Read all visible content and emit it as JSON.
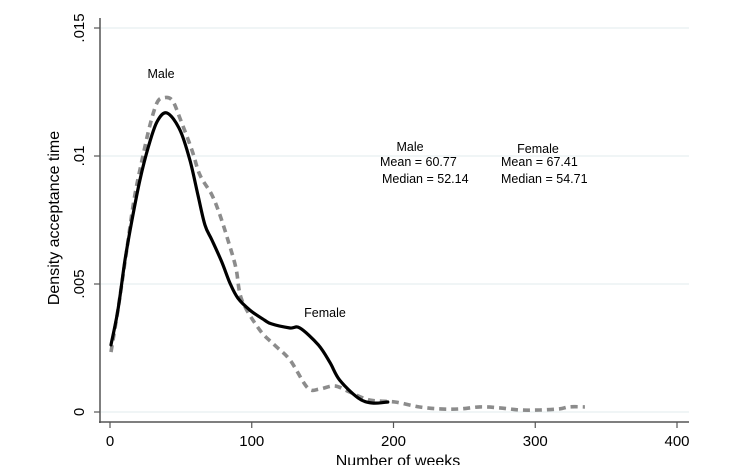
{
  "chart_data": {
    "type": "line",
    "title": "",
    "xlabel": "Number of weeks",
    "ylabel": "Density acceptance time",
    "xlim": [
      0,
      400
    ],
    "ylim": [
      0,
      0.015
    ],
    "xticks": [
      0,
      100,
      200,
      300,
      400
    ],
    "xtick_labels": [
      "0",
      "100",
      "200",
      "300",
      "400"
    ],
    "yticks": [
      0,
      0.005,
      0.01,
      0.015
    ],
    "ytick_labels": [
      "0",
      ".005",
      ".01",
      ".015"
    ],
    "grid": true,
    "series": [
      {
        "name": "Female",
        "style": "solid",
        "color": "#000000",
        "x": [
          0.7,
          5.6,
          10.6,
          15.5,
          21.1,
          26.8,
          33.1,
          40.2,
          49.3,
          56.4,
          62,
          67,
          71.9,
          78.9,
          84.6,
          90.2,
          98.7,
          109,
          114,
          127,
          134,
          147,
          155,
          162,
          175,
          185,
          196
        ],
        "y": [
          0.00262,
          0.00398,
          0.00594,
          0.0075,
          0.00906,
          0.01031,
          0.01133,
          0.01168,
          0.01102,
          0.00984,
          0.00848,
          0.0073,
          0.00672,
          0.00586,
          0.00504,
          0.00445,
          0.00398,
          0.00359,
          0.00344,
          0.00328,
          0.00328,
          0.00262,
          0.00195,
          0.00125,
          0.00055,
          0.00035,
          0.00039
        ]
      },
      {
        "name": "Male",
        "style": "dashed",
        "color": "#8c8c8c",
        "x": [
          0.7,
          5.6,
          11.3,
          16.9,
          22.6,
          28.2,
          33.1,
          37.3,
          43.7,
          49.3,
          57.8,
          63.4,
          71.9,
          77.5,
          83.2,
          88.8,
          93,
          105.7,
          116,
          127,
          139.5,
          148,
          158.6,
          169,
          183,
          201,
          218,
          233,
          247,
          261,
          275,
          289,
          303,
          317,
          324,
          335
        ],
        "y": [
          0.00234,
          0.00398,
          0.00613,
          0.00828,
          0.00984,
          0.01121,
          0.01207,
          0.01227,
          0.01219,
          0.01148,
          0.01023,
          0.00926,
          0.00848,
          0.0077,
          0.00672,
          0.00563,
          0.00438,
          0.0032,
          0.00262,
          0.00203,
          0.00094,
          0.0009,
          0.00102,
          0.00078,
          0.00047,
          0.00039,
          0.0002,
          0.00012,
          0.00012,
          0.0002,
          0.00016,
          8e-05,
          8e-05,
          0.00012,
          0.0002,
          0.0002
        ]
      }
    ],
    "annotations": {
      "male_curve_label": "Male",
      "female_curve_label": "Female",
      "male_stats": {
        "title": "Male",
        "mean": "Mean = 60.77",
        "median": "Median = 52.14"
      },
      "female_stats": {
        "title": "Female",
        "mean": "Mean = 67.41",
        "median": "Median = 54.71"
      }
    },
    "colors": {
      "grid": "#e6eff1",
      "axis": "#555555"
    }
  }
}
